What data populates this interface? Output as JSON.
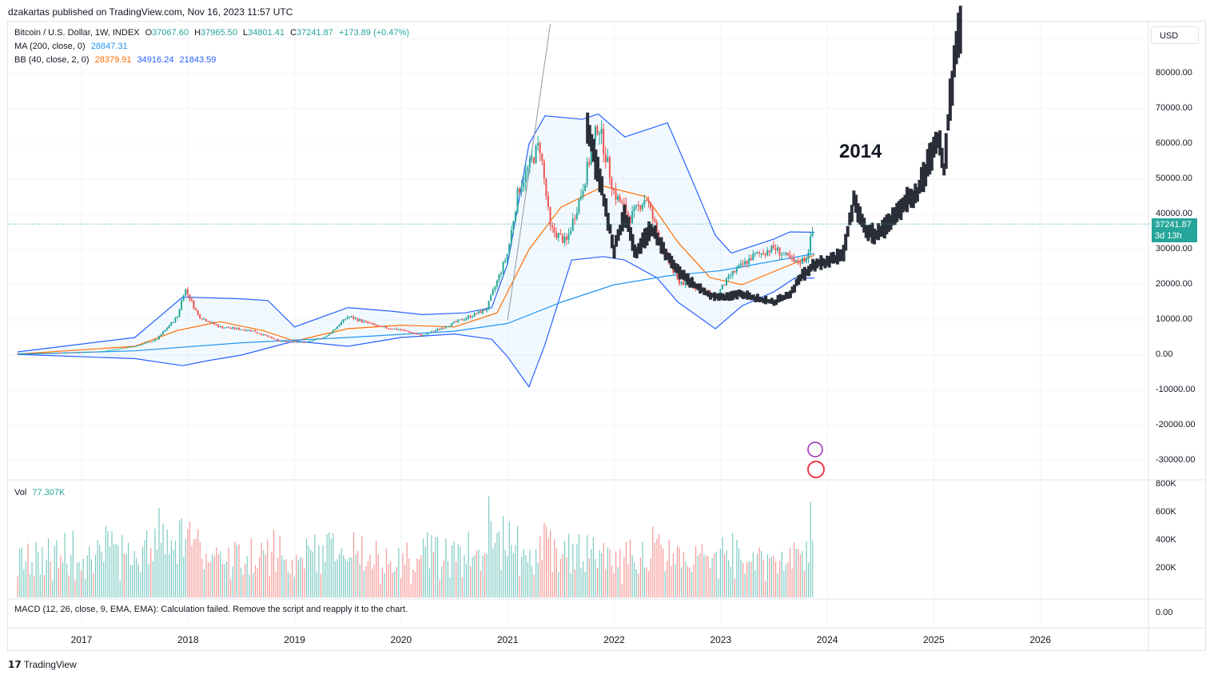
{
  "publisher_line": "dzakartas published on TradingView.com, Nov 16, 2023 11:57 UTC",
  "legend": {
    "symbol": "Bitcoin / U.S. Dollar, 1W, INDEX",
    "open_label": "O",
    "open": "37067.60",
    "high_label": "H",
    "high": "37965.50",
    "low_label": "L",
    "low": "34801.41",
    "close_label": "C",
    "close": "37241.87",
    "change": "+173.89 (+0.47%)",
    "ma_label": "MA (200, close, 0)",
    "ma_value": "28847.31",
    "bb_label": "BB (40, close, 2, 0)",
    "bb_basis": "28379.91",
    "bb_upper": "34916.24",
    "bb_lower": "21843.59",
    "vol_label": "Vol",
    "vol_value": "77.307K",
    "macd_label": "MACD (12, 26, close, 9, EMA, EMA): Calculation failed. Remove the script and reapply it to the chart."
  },
  "currency_button": "USD",
  "price_tag": {
    "price": "37241.87",
    "countdown": "3d 13h"
  },
  "annotation": "2014",
  "footer_brand": "TradingView",
  "colors": {
    "up": "#26a69a",
    "down": "#ef5350",
    "ma": "#2196f3",
    "bb_basis": "#ff6d00",
    "bb_band": "#2962ff",
    "fractal": "#2a2e39"
  },
  "chart_data": {
    "type": "candlestick",
    "timeframe": "1W",
    "x_ticks": [
      "2017",
      "2018",
      "2019",
      "2020",
      "2021",
      "2022",
      "2023",
      "2024",
      "2025",
      "2026"
    ],
    "y_ticks": [
      "80000.00",
      "70000.00",
      "60000.00",
      "50000.00",
      "40000.00",
      "30000.00",
      "20000.00",
      "10000.00",
      "0.00",
      "-10000.00",
      "-20000.00",
      "-30000.00"
    ],
    "ylim": [
      -30000,
      90000
    ],
    "volume_ticks": [
      "800K",
      "600K",
      "400K",
      "200K"
    ],
    "macd_ticks": [
      "0.00"
    ],
    "price_series": [
      {
        "t": 2016.4,
        "v": 500
      },
      {
        "t": 2016.8,
        "v": 700
      },
      {
        "t": 2017.2,
        "v": 1100
      },
      {
        "t": 2017.5,
        "v": 2500
      },
      {
        "t": 2017.7,
        "v": 4300
      },
      {
        "t": 2017.9,
        "v": 11000
      },
      {
        "t": 2017.97,
        "v": 19000
      },
      {
        "t": 2018.1,
        "v": 11000
      },
      {
        "t": 2018.3,
        "v": 8000
      },
      {
        "t": 2018.6,
        "v": 7000
      },
      {
        "t": 2018.85,
        "v": 4000
      },
      {
        "t": 2019.1,
        "v": 3600
      },
      {
        "t": 2019.3,
        "v": 5300
      },
      {
        "t": 2019.5,
        "v": 11000
      },
      {
        "t": 2019.8,
        "v": 8000
      },
      {
        "t": 2020.0,
        "v": 7200
      },
      {
        "t": 2020.2,
        "v": 5500
      },
      {
        "t": 2020.5,
        "v": 9200
      },
      {
        "t": 2020.8,
        "v": 13000
      },
      {
        "t": 2021.0,
        "v": 29000
      },
      {
        "t": 2021.1,
        "v": 47000
      },
      {
        "t": 2021.3,
        "v": 60000
      },
      {
        "t": 2021.4,
        "v": 36000
      },
      {
        "t": 2021.55,
        "v": 32000
      },
      {
        "t": 2021.7,
        "v": 47000
      },
      {
        "t": 2021.85,
        "v": 66000
      },
      {
        "t": 2022.0,
        "v": 46000
      },
      {
        "t": 2022.15,
        "v": 39000
      },
      {
        "t": 2022.3,
        "v": 45000
      },
      {
        "t": 2022.45,
        "v": 30000
      },
      {
        "t": 2022.6,
        "v": 21000
      },
      {
        "t": 2022.8,
        "v": 19000
      },
      {
        "t": 2022.95,
        "v": 16500
      },
      {
        "t": 2023.1,
        "v": 23000
      },
      {
        "t": 2023.3,
        "v": 28000
      },
      {
        "t": 2023.5,
        "v": 30500
      },
      {
        "t": 2023.7,
        "v": 26000
      },
      {
        "t": 2023.8,
        "v": 27500
      },
      {
        "t": 2023.88,
        "v": 37241.87
      }
    ],
    "ma200": [
      {
        "t": 2016.4,
        "v": 200
      },
      {
        "t": 2017.5,
        "v": 1200
      },
      {
        "t": 2018.5,
        "v": 3500
      },
      {
        "t": 2019.5,
        "v": 5000
      },
      {
        "t": 2020.5,
        "v": 6800
      },
      {
        "t": 2021.0,
        "v": 9000
      },
      {
        "t": 2021.5,
        "v": 15000
      },
      {
        "t": 2022.0,
        "v": 20000
      },
      {
        "t": 2022.5,
        "v": 22500
      },
      {
        "t": 2023.0,
        "v": 24000
      },
      {
        "t": 2023.88,
        "v": 28847.31
      }
    ],
    "bb_basis": [
      {
        "t": 2016.4,
        "v": 300
      },
      {
        "t": 2017.5,
        "v": 2500
      },
      {
        "t": 2017.9,
        "v": 7000
      },
      {
        "t": 2018.3,
        "v": 9500
      },
      {
        "t": 2018.7,
        "v": 7000
      },
      {
        "t": 2019.0,
        "v": 4000
      },
      {
        "t": 2019.5,
        "v": 7500
      },
      {
        "t": 2020.0,
        "v": 8500
      },
      {
        "t": 2020.5,
        "v": 8000
      },
      {
        "t": 2020.9,
        "v": 12000
      },
      {
        "t": 2021.2,
        "v": 30000
      },
      {
        "t": 2021.5,
        "v": 42000
      },
      {
        "t": 2021.9,
        "v": 48000
      },
      {
        "t": 2022.3,
        "v": 45000
      },
      {
        "t": 2022.6,
        "v": 32000
      },
      {
        "t": 2022.9,
        "v": 22000
      },
      {
        "t": 2023.2,
        "v": 20000
      },
      {
        "t": 2023.6,
        "v": 25000
      },
      {
        "t": 2023.88,
        "v": 28379.91
      }
    ],
    "bb_upper": [
      {
        "t": 2016.4,
        "v": 900
      },
      {
        "t": 2017.5,
        "v": 5000
      },
      {
        "t": 2017.95,
        "v": 16500
      },
      {
        "t": 2018.5,
        "v": 16000
      },
      {
        "t": 2018.75,
        "v": 15500
      },
      {
        "t": 2019.0,
        "v": 8000
      },
      {
        "t": 2019.5,
        "v": 13500
      },
      {
        "t": 2019.9,
        "v": 12500
      },
      {
        "t": 2020.2,
        "v": 11500
      },
      {
        "t": 2020.6,
        "v": 12000
      },
      {
        "t": 2020.85,
        "v": 13500
      },
      {
        "t": 2021.0,
        "v": 26000
      },
      {
        "t": 2021.2,
        "v": 60000
      },
      {
        "t": 2021.35,
        "v": 68000
      },
      {
        "t": 2021.7,
        "v": 67000
      },
      {
        "t": 2021.85,
        "v": 68500
      },
      {
        "t": 2022.1,
        "v": 62000
      },
      {
        "t": 2022.5,
        "v": 66000
      },
      {
        "t": 2022.7,
        "v": 52000
      },
      {
        "t": 2022.95,
        "v": 34000
      },
      {
        "t": 2023.1,
        "v": 29000
      },
      {
        "t": 2023.5,
        "v": 33000
      },
      {
        "t": 2023.65,
        "v": 35000
      },
      {
        "t": 2023.88,
        "v": 34916.24
      }
    ],
    "bb_lower": [
      {
        "t": 2016.4,
        "v": 200
      },
      {
        "t": 2017.5,
        "v": -1000
      },
      {
        "t": 2017.95,
        "v": -3000
      },
      {
        "t": 2018.2,
        "v": -1500
      },
      {
        "t": 2018.5,
        "v": 0
      },
      {
        "t": 2019.0,
        "v": 4000
      },
      {
        "t": 2019.5,
        "v": 2500
      },
      {
        "t": 2020.0,
        "v": 5000
      },
      {
        "t": 2020.5,
        "v": 6000
      },
      {
        "t": 2020.85,
        "v": 4500
      },
      {
        "t": 2021.0,
        "v": -500
      },
      {
        "t": 2021.2,
        "v": -9000
      },
      {
        "t": 2021.35,
        "v": 3000
      },
      {
        "t": 2021.6,
        "v": 27000
      },
      {
        "t": 2021.9,
        "v": 28000
      },
      {
        "t": 2022.1,
        "v": 27000
      },
      {
        "t": 2022.4,
        "v": 22000
      },
      {
        "t": 2022.6,
        "v": 15000
      },
      {
        "t": 2022.95,
        "v": 7500
      },
      {
        "t": 2023.2,
        "v": 14000
      },
      {
        "t": 2023.5,
        "v": 18000
      },
      {
        "t": 2023.7,
        "v": 22000
      },
      {
        "t": 2023.88,
        "v": 21843.59
      }
    ],
    "fractal_projection": [
      {
        "t": 2021.75,
        "v": 65000
      },
      {
        "t": 2021.9,
        "v": 45000
      },
      {
        "t": 2022.0,
        "v": 30000
      },
      {
        "t": 2022.1,
        "v": 40000
      },
      {
        "t": 2022.2,
        "v": 29000
      },
      {
        "t": 2022.35,
        "v": 36000
      },
      {
        "t": 2022.5,
        "v": 28000
      },
      {
        "t": 2022.6,
        "v": 24000
      },
      {
        "t": 2022.75,
        "v": 20000
      },
      {
        "t": 2022.9,
        "v": 17000
      },
      {
        "t": 2023.05,
        "v": 16500
      },
      {
        "t": 2023.2,
        "v": 17500
      },
      {
        "t": 2023.35,
        "v": 16000
      },
      {
        "t": 2023.5,
        "v": 15000
      },
      {
        "t": 2023.65,
        "v": 17500
      },
      {
        "t": 2023.75,
        "v": 22000
      },
      {
        "t": 2023.9,
        "v": 26000
      },
      {
        "t": 2024.0,
        "v": 26500
      },
      {
        "t": 2024.15,
        "v": 28500
      },
      {
        "t": 2024.25,
        "v": 44000
      },
      {
        "t": 2024.35,
        "v": 36000
      },
      {
        "t": 2024.45,
        "v": 34000
      },
      {
        "t": 2024.6,
        "v": 38000
      },
      {
        "t": 2024.75,
        "v": 44000
      },
      {
        "t": 2024.85,
        "v": 46000
      },
      {
        "t": 2024.95,
        "v": 55000
      },
      {
        "t": 2025.05,
        "v": 62000
      },
      {
        "t": 2025.1,
        "v": 52000
      },
      {
        "t": 2025.15,
        "v": 72000
      },
      {
        "t": 2025.22,
        "v": 88000
      },
      {
        "t": 2025.25,
        "v": 94000
      }
    ]
  }
}
